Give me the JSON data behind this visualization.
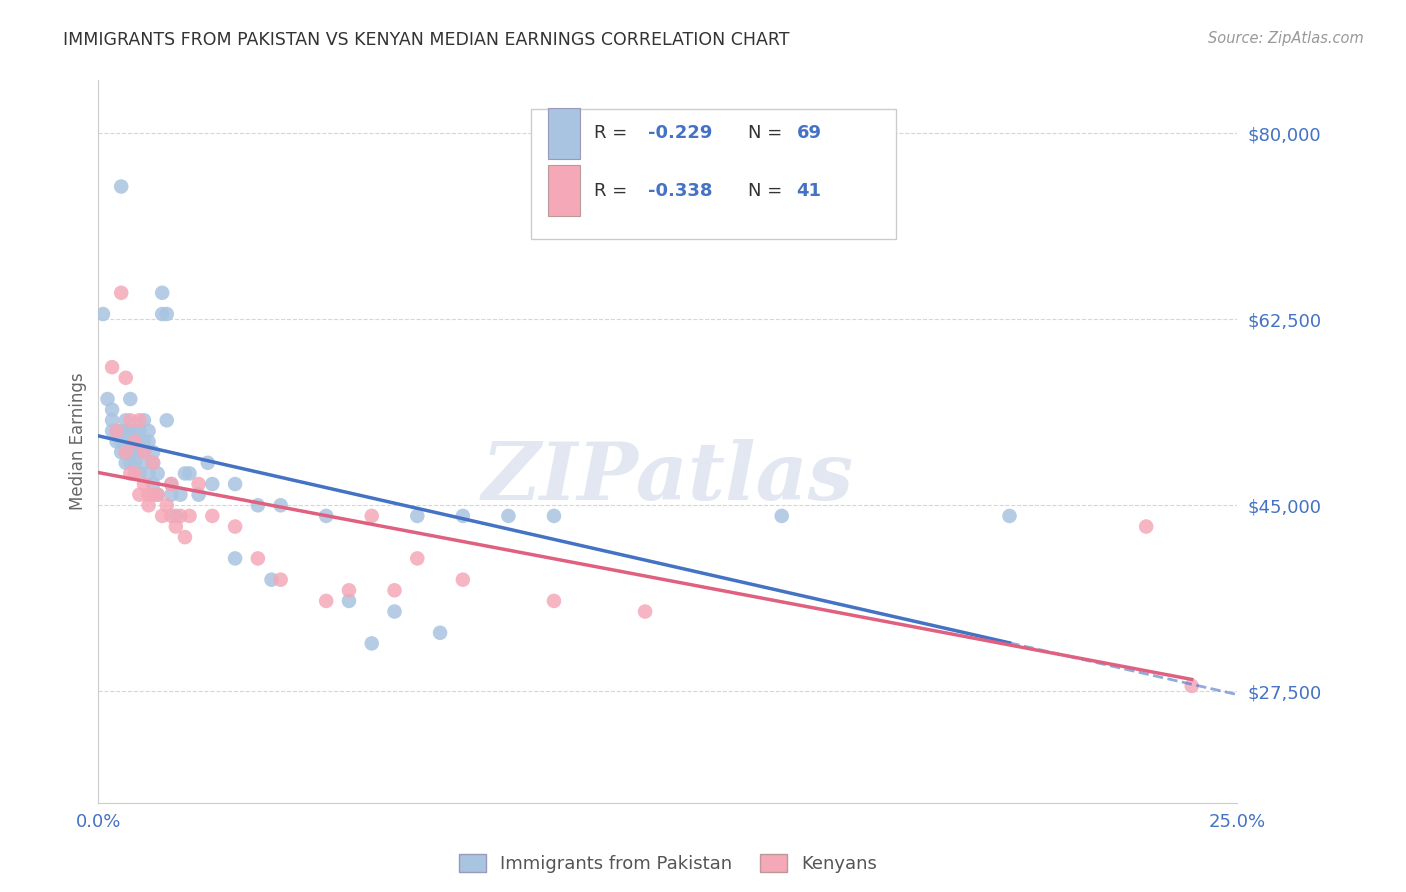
{
  "title": "IMMIGRANTS FROM PAKISTAN VS KENYAN MEDIAN EARNINGS CORRELATION CHART",
  "source": "Source: ZipAtlas.com",
  "ylabel": "Median Earnings",
  "yticks": [
    27500,
    45000,
    62500,
    80000
  ],
  "ytick_labels": [
    "$27,500",
    "$45,000",
    "$62,500",
    "$80,000"
  ],
  "ylim": [
    17000,
    85000
  ],
  "xlim": [
    0.0,
    0.25
  ],
  "watermark": "ZIPatlas",
  "legend_label1": "Immigrants from Pakistan",
  "legend_label2": "Kenyans",
  "color_pakistan": "#a8c4e0",
  "color_kenya": "#f4a8b8",
  "color_pakistan_line": "#4472c4",
  "color_kenya_line": "#e06080",
  "color_axis_labels": "#4472c4",
  "background_color": "#ffffff",
  "pak_x": [
    0.001,
    0.002,
    0.003,
    0.003,
    0.003,
    0.004,
    0.004,
    0.005,
    0.005,
    0.005,
    0.005,
    0.006,
    0.006,
    0.006,
    0.006,
    0.006,
    0.007,
    0.007,
    0.007,
    0.007,
    0.007,
    0.008,
    0.008,
    0.008,
    0.008,
    0.008,
    0.009,
    0.009,
    0.01,
    0.01,
    0.01,
    0.01,
    0.011,
    0.011,
    0.011,
    0.012,
    0.012,
    0.012,
    0.013,
    0.013,
    0.014,
    0.014,
    0.015,
    0.015,
    0.016,
    0.016,
    0.017,
    0.018,
    0.019,
    0.02,
    0.022,
    0.024,
    0.025,
    0.03,
    0.03,
    0.035,
    0.038,
    0.04,
    0.05,
    0.055,
    0.06,
    0.065,
    0.07,
    0.075,
    0.08,
    0.09,
    0.1,
    0.15,
    0.2
  ],
  "pak_y": [
    63000,
    55000,
    52000,
    53000,
    54000,
    52000,
    51000,
    75000,
    52000,
    50000,
    51000,
    53000,
    52000,
    50000,
    49000,
    51000,
    55000,
    52000,
    51000,
    50000,
    49000,
    52000,
    50000,
    49000,
    51000,
    50000,
    52000,
    48000,
    53000,
    51000,
    50000,
    49000,
    52000,
    51000,
    48000,
    50000,
    49000,
    47000,
    48000,
    46000,
    65000,
    63000,
    53000,
    63000,
    47000,
    46000,
    44000,
    46000,
    48000,
    48000,
    46000,
    49000,
    47000,
    47000,
    40000,
    45000,
    38000,
    45000,
    44000,
    36000,
    32000,
    35000,
    44000,
    33000,
    44000,
    44000,
    44000,
    44000,
    44000
  ],
  "ken_x": [
    0.003,
    0.004,
    0.005,
    0.006,
    0.006,
    0.007,
    0.007,
    0.008,
    0.008,
    0.009,
    0.009,
    0.01,
    0.01,
    0.011,
    0.011,
    0.012,
    0.012,
    0.013,
    0.014,
    0.015,
    0.016,
    0.016,
    0.017,
    0.018,
    0.019,
    0.02,
    0.022,
    0.025,
    0.03,
    0.035,
    0.04,
    0.05,
    0.055,
    0.06,
    0.065,
    0.07,
    0.08,
    0.1,
    0.12,
    0.23,
    0.24
  ],
  "ken_y": [
    58000,
    52000,
    65000,
    57000,
    50000,
    53000,
    48000,
    51000,
    48000,
    53000,
    46000,
    50000,
    47000,
    46000,
    45000,
    49000,
    46000,
    46000,
    44000,
    45000,
    44000,
    47000,
    43000,
    44000,
    42000,
    44000,
    47000,
    44000,
    43000,
    40000,
    38000,
    36000,
    37000,
    44000,
    37000,
    40000,
    38000,
    36000,
    35000,
    43000,
    28000
  ]
}
